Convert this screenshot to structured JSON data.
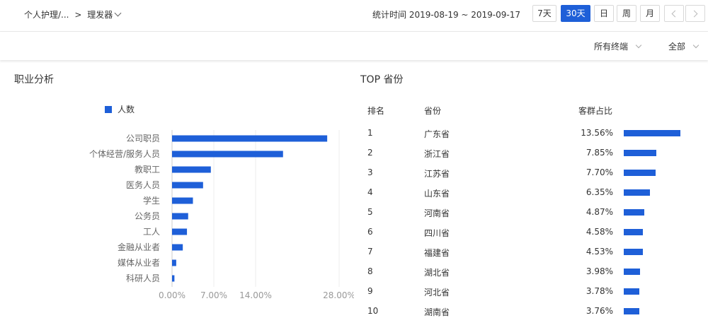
{
  "header": {
    "breadcrumb_parent": "个人护理/...",
    "breadcrumb_separator": ">",
    "breadcrumb_current": "理发器",
    "stat_label": "统计时间",
    "date_range": "2019-08-19 ~ 2019-09-17",
    "range_buttons": [
      "7天",
      "30天",
      "日",
      "周",
      "月"
    ],
    "active_range": "30天"
  },
  "filters": {
    "terminal": "所有终端",
    "scope": "全部"
  },
  "occupation": {
    "title": "职业分析",
    "legend": "人数"
  },
  "top_provinces": {
    "title": "TOP 省份",
    "headers": {
      "rank": "排名",
      "province": "省份",
      "share": "客群占比"
    },
    "rows": [
      {
        "rank": "1",
        "province": "广东省",
        "share": "13.56%",
        "value": 13.56
      },
      {
        "rank": "2",
        "province": "浙江省",
        "share": "7.85%",
        "value": 7.85
      },
      {
        "rank": "3",
        "province": "江苏省",
        "share": "7.70%",
        "value": 7.7
      },
      {
        "rank": "4",
        "province": "山东省",
        "share": "6.35%",
        "value": 6.35
      },
      {
        "rank": "5",
        "province": "河南省",
        "share": "4.87%",
        "value": 4.87
      },
      {
        "rank": "6",
        "province": "四川省",
        "share": "4.58%",
        "value": 4.58
      },
      {
        "rank": "7",
        "province": "福建省",
        "share": "4.53%",
        "value": 4.53
      },
      {
        "rank": "8",
        "province": "湖北省",
        "share": "3.98%",
        "value": 3.98
      },
      {
        "rank": "9",
        "province": "河北省",
        "share": "3.78%",
        "value": 3.78
      },
      {
        "rank": "10",
        "province": "湖南省",
        "share": "3.76%",
        "value": 3.76
      }
    ]
  },
  "chart_data": {
    "type": "bar",
    "orientation": "horizontal",
    "title": "",
    "xlabel": "",
    "ylabel": "",
    "categories": [
      "公司职员",
      "个体经营/服务人员",
      "教职工",
      "医务人员",
      "学生",
      "公务员",
      "工人",
      "金融从业者",
      "媒体从业者",
      "科研人员"
    ],
    "series": [
      {
        "name": "人数",
        "values": [
          26.0,
          18.6,
          6.5,
          5.2,
          3.5,
          2.7,
          2.5,
          1.8,
          0.7,
          0.4
        ]
      }
    ],
    "xticks": [
      0,
      7,
      14,
      28
    ],
    "xtick_labels": [
      "0.00%",
      "7.00%",
      "14.00%",
      "28.00%"
    ],
    "xlim": [
      0,
      28
    ],
    "grid": true,
    "legend_position": "top-left",
    "color": "#1e5fd8"
  }
}
